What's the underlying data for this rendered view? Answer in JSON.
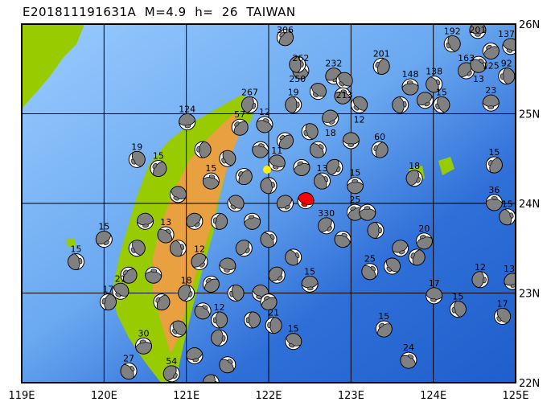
{
  "title": "E201811191631A  M=4.9  h=  26  TAIWAN",
  "map": {
    "lon_range": [
      119,
      125
    ],
    "lat_range": [
      22,
      26
    ],
    "x_ticks": [
      "119E",
      "120E",
      "121E",
      "122E",
      "123E",
      "124E",
      "125E"
    ],
    "y_ticks": [
      "26N",
      "25N",
      "24N",
      "23N",
      "22N"
    ],
    "colors": {
      "ocean_shallow": "#99ccff",
      "ocean_deep": "#1f5fcc",
      "lowland": "#99cc00",
      "mountain": "#e8a040",
      "compression": "#808080",
      "main_event": "#ff0000",
      "station": "#ffee00"
    }
  },
  "main_event": {
    "lon": 122.45,
    "lat": 24.03,
    "depth": 26,
    "magnitude": 4.9
  },
  "events": [
    [
      124.54,
      25.93,
      "201"
    ],
    [
      124.23,
      25.78,
      "192"
    ],
    [
      122.2,
      25.85,
      "306"
    ],
    [
      122.39,
      25.48,
      "262"
    ],
    [
      122.35,
      25.55,
      "250"
    ],
    [
      122.79,
      25.42,
      "232"
    ],
    [
      122.92,
      25.37,
      "213"
    ],
    [
      123.37,
      25.53,
      "201"
    ],
    [
      123.72,
      25.3,
      "148"
    ],
    [
      124.01,
      25.33,
      "138"
    ],
    [
      124.4,
      25.48,
      "163"
    ],
    [
      124.94,
      25.75,
      "137"
    ],
    [
      124.89,
      25.42,
      "92"
    ],
    [
      124.7,
      25.7,
      "125"
    ],
    [
      124.55,
      25.55,
      "13"
    ],
    [
      121.77,
      25.1,
      "267"
    ],
    [
      121.01,
      24.91,
      "124"
    ],
    [
      120.4,
      24.49,
      "19"
    ],
    [
      120.66,
      24.39,
      "15"
    ],
    [
      121.3,
      24.25,
      "15"
    ],
    [
      119.66,
      23.35,
      "15"
    ],
    [
      120.0,
      23.6,
      "15"
    ],
    [
      120.2,
      23.02,
      "21"
    ],
    [
      120.05,
      22.9,
      "17"
    ],
    [
      120.48,
      22.41,
      "30"
    ],
    [
      120.3,
      22.13,
      "27"
    ],
    [
      120.82,
      22.1,
      "54"
    ],
    [
      124.01,
      22.97,
      "17"
    ],
    [
      124.3,
      22.82,
      "15"
    ],
    [
      123.4,
      22.6,
      "15"
    ],
    [
      123.7,
      22.25,
      "24"
    ],
    [
      124.57,
      23.15,
      "12"
    ],
    [
      124.96,
      23.13,
      "13"
    ],
    [
      124.84,
      22.74,
      "17"
    ],
    [
      124.74,
      24.43,
      "15"
    ],
    [
      124.74,
      24.01,
      "36"
    ],
    [
      124.9,
      23.85,
      "15"
    ],
    [
      121.16,
      23.35,
      "12"
    ],
    [
      122.3,
      22.46,
      "15"
    ],
    [
      122.06,
      22.64,
      "21"
    ],
    [
      123.89,
      23.58,
      "20"
    ],
    [
      123.23,
      23.24,
      "25"
    ],
    [
      123.77,
      24.28,
      "18"
    ],
    [
      124.7,
      25.12,
      "23"
    ],
    [
      124.1,
      25.1,
      "15"
    ],
    [
      121.65,
      24.85,
      "57"
    ],
    [
      121.95,
      24.88,
      "12"
    ],
    [
      122.3,
      25.1,
      "19"
    ],
    [
      122.75,
      24.95,
      "18"
    ],
    [
      123.1,
      25.1,
      "12"
    ],
    [
      123.35,
      24.6,
      "60"
    ],
    [
      123.05,
      24.2,
      "15"
    ],
    [
      122.65,
      24.25,
      "13"
    ],
    [
      122.7,
      23.75,
      "330"
    ],
    [
      122.1,
      24.45,
      "11"
    ],
    [
      121.4,
      22.7,
      "12"
    ],
    [
      123.05,
      23.9,
      "25"
    ],
    [
      120.75,
      23.65,
      "13"
    ],
    [
      121.0,
      23.0,
      "18"
    ],
    [
      122.5,
      23.1,
      "15"
    ],
    [
      121.5,
      24.5,
      ""
    ],
    [
      121.7,
      24.3,
      ""
    ],
    [
      121.9,
      24.6,
      ""
    ],
    [
      122.0,
      24.2,
      ""
    ],
    [
      122.2,
      24.0,
      ""
    ],
    [
      121.6,
      24.0,
      ""
    ],
    [
      121.4,
      23.8,
      ""
    ],
    [
      121.8,
      23.8,
      ""
    ],
    [
      122.0,
      23.6,
      ""
    ],
    [
      121.7,
      23.5,
      ""
    ],
    [
      121.5,
      23.3,
      ""
    ],
    [
      121.6,
      23.0,
      ""
    ],
    [
      121.3,
      23.1,
      ""
    ],
    [
      121.2,
      22.8,
      ""
    ],
    [
      121.4,
      22.5,
      ""
    ],
    [
      121.1,
      22.3,
      ""
    ],
    [
      120.9,
      22.6,
      ""
    ],
    [
      120.7,
      22.9,
      ""
    ],
    [
      120.6,
      23.2,
      ""
    ],
    [
      120.9,
      23.5,
      ""
    ],
    [
      121.1,
      23.8,
      ""
    ],
    [
      120.9,
      24.1,
      ""
    ],
    [
      121.2,
      24.6,
      ""
    ],
    [
      122.4,
      24.4,
      ""
    ],
    [
      122.6,
      24.6,
      ""
    ],
    [
      122.8,
      24.4,
      ""
    ],
    [
      123.0,
      24.7,
      ""
    ],
    [
      122.5,
      24.8,
      ""
    ],
    [
      122.2,
      24.7,
      ""
    ],
    [
      122.9,
      23.6,
      ""
    ],
    [
      123.3,
      23.7,
      ""
    ],
    [
      123.6,
      23.5,
      ""
    ],
    [
      123.5,
      23.3,
      ""
    ],
    [
      123.8,
      23.4,
      ""
    ],
    [
      123.2,
      23.9,
      ""
    ],
    [
      122.3,
      23.4,
      ""
    ],
    [
      122.1,
      23.2,
      ""
    ],
    [
      121.9,
      23.0,
      ""
    ],
    [
      121.8,
      22.7,
      ""
    ],
    [
      122.0,
      22.9,
      ""
    ],
    [
      121.5,
      22.2,
      ""
    ],
    [
      121.3,
      22.0,
      ""
    ],
    [
      120.5,
      23.8,
      ""
    ],
    [
      120.4,
      23.5,
      ""
    ],
    [
      120.3,
      23.2,
      ""
    ],
    [
      122.9,
      25.2,
      ""
    ],
    [
      123.6,
      25.1,
      ""
    ],
    [
      123.9,
      25.15,
      ""
    ],
    [
      122.6,
      25.25,
      ""
    ]
  ]
}
